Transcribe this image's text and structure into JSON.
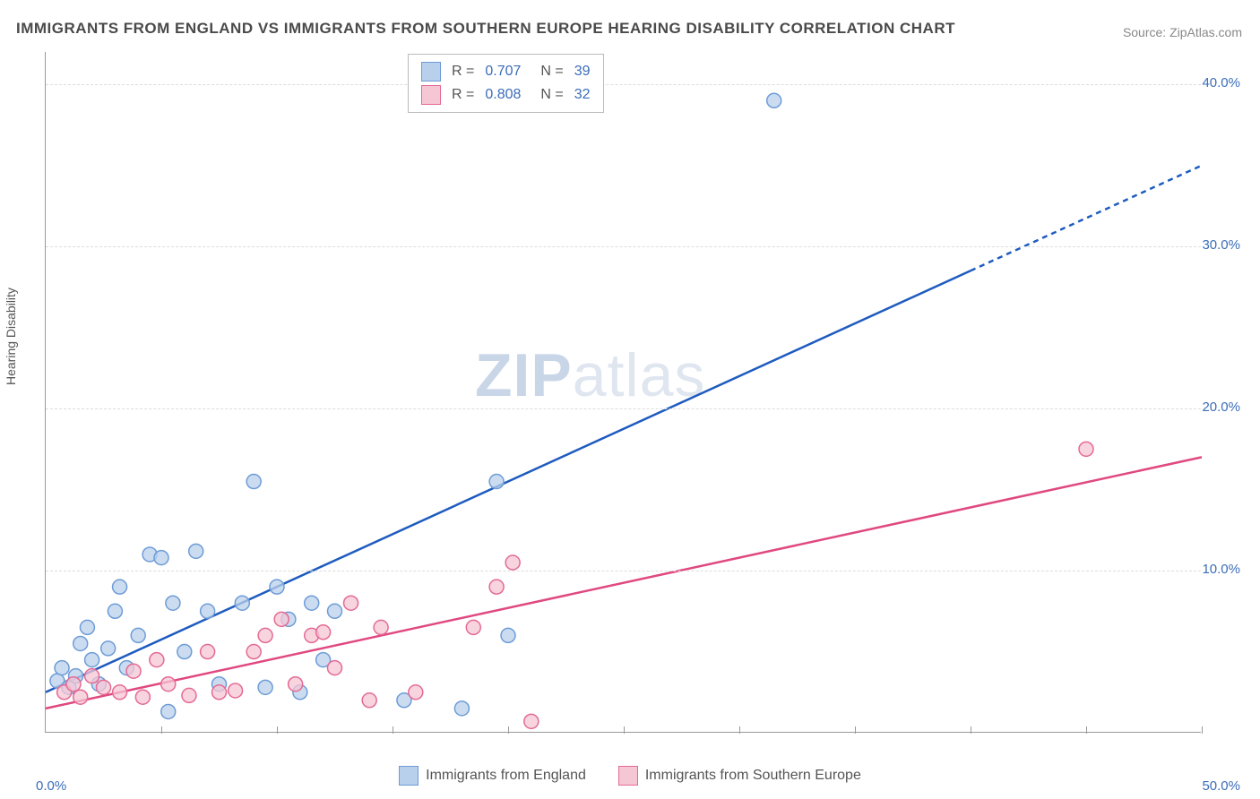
{
  "title": "IMMIGRANTS FROM ENGLAND VS IMMIGRANTS FROM SOUTHERN EUROPE HEARING DISABILITY CORRELATION CHART",
  "source": "Source: ZipAtlas.com",
  "ylabel": "Hearing Disability",
  "watermark_a": "ZIP",
  "watermark_b": "atlas",
  "chart": {
    "type": "scatter",
    "xlim": [
      0,
      50
    ],
    "ylim": [
      0,
      42
    ],
    "xlabel_min": "0.0%",
    "xlabel_max": "50.0%",
    "yticks": [
      {
        "v": 10,
        "label": "10.0%"
      },
      {
        "v": 20,
        "label": "20.0%"
      },
      {
        "v": 30,
        "label": "30.0%"
      },
      {
        "v": 40,
        "label": "40.0%"
      }
    ],
    "xticks": [
      5,
      10,
      15,
      20,
      25,
      30,
      35,
      40,
      45,
      50
    ],
    "background_color": "#ffffff",
    "grid_color": "#dcdcdc",
    "marker_radius": 8,
    "marker_stroke_width": 1.5,
    "line_width": 2.5,
    "series": [
      {
        "name": "Immigrants from England",
        "fill": "#b9d0ec",
        "stroke": "#6d9cd6",
        "line_color": "#1e5bbf",
        "R": "0.707",
        "N": "39",
        "trend": {
          "x1": 0,
          "y1": 2.5,
          "x2": 40,
          "y2": 28.5,
          "dash_from_x": 40,
          "x3": 50,
          "y3": 35
        },
        "points": [
          [
            0.5,
            3.2
          ],
          [
            0.7,
            4.0
          ],
          [
            1.0,
            2.8
          ],
          [
            1.3,
            3.5
          ],
          [
            1.5,
            5.5
          ],
          [
            1.8,
            6.5
          ],
          [
            2.0,
            4.5
          ],
          [
            2.3,
            3.0
          ],
          [
            2.7,
            5.2
          ],
          [
            3.0,
            7.5
          ],
          [
            3.2,
            9.0
          ],
          [
            3.5,
            4.0
          ],
          [
            4.0,
            6.0
          ],
          [
            4.5,
            11.0
          ],
          [
            5.0,
            10.8
          ],
          [
            5.3,
            1.3
          ],
          [
            5.5,
            8.0
          ],
          [
            6.0,
            5.0
          ],
          [
            6.5,
            11.2
          ],
          [
            7.0,
            7.5
          ],
          [
            7.5,
            3.0
          ],
          [
            8.5,
            8.0
          ],
          [
            9.0,
            15.5
          ],
          [
            9.5,
            2.8
          ],
          [
            10.0,
            9.0
          ],
          [
            10.5,
            7.0
          ],
          [
            11.0,
            2.5
          ],
          [
            11.5,
            8.0
          ],
          [
            12.0,
            4.5
          ],
          [
            12.5,
            7.5
          ],
          [
            15.5,
            2.0
          ],
          [
            18.0,
            1.5
          ],
          [
            19.5,
            15.5
          ],
          [
            20.0,
            6.0
          ],
          [
            31.5,
            39.0
          ]
        ]
      },
      {
        "name": "Immigrants from Southern Europe",
        "fill": "#f5c6d4",
        "stroke": "#e46a94",
        "line_color": "#e04880",
        "R": "0.808",
        "N": "32",
        "trend": {
          "x1": 0,
          "y1": 1.5,
          "x2": 50,
          "y2": 17.0
        },
        "points": [
          [
            0.8,
            2.5
          ],
          [
            1.2,
            3.0
          ],
          [
            1.5,
            2.2
          ],
          [
            2.0,
            3.5
          ],
          [
            2.5,
            2.8
          ],
          [
            3.2,
            2.5
          ],
          [
            3.8,
            3.8
          ],
          [
            4.2,
            2.2
          ],
          [
            4.8,
            4.5
          ],
          [
            5.3,
            3.0
          ],
          [
            6.2,
            2.3
          ],
          [
            7.0,
            5.0
          ],
          [
            7.5,
            2.5
          ],
          [
            8.2,
            2.6
          ],
          [
            9.0,
            5.0
          ],
          [
            9.5,
            6.0
          ],
          [
            10.2,
            7.0
          ],
          [
            10.8,
            3.0
          ],
          [
            11.5,
            6.0
          ],
          [
            12.0,
            6.2
          ],
          [
            12.5,
            4.0
          ],
          [
            13.2,
            8.0
          ],
          [
            14.0,
            2.0
          ],
          [
            14.5,
            6.5
          ],
          [
            16.0,
            2.5
          ],
          [
            18.5,
            6.5
          ],
          [
            19.5,
            9.0
          ],
          [
            20.2,
            10.5
          ],
          [
            21.0,
            0.7
          ],
          [
            45.0,
            17.5
          ]
        ]
      }
    ]
  },
  "legend_top": {
    "r_label": "R =",
    "n_label": "N ="
  },
  "bottom_legend": {
    "items": [
      {
        "label": "Immigrants from England",
        "fill": "#b9d0ec",
        "stroke": "#6d9cd6"
      },
      {
        "label": "Immigrants from Southern Europe",
        "fill": "#f5c6d4",
        "stroke": "#e46a94"
      }
    ]
  }
}
